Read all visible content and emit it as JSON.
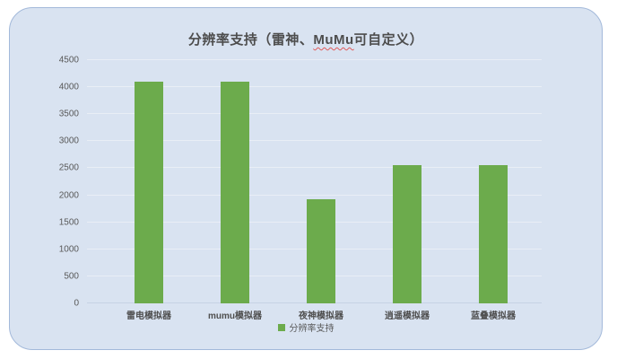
{
  "chart": {
    "title_prefix": "分辨率支持（雷神、",
    "title_highlight": "MuMu",
    "title_suffix": "可自定义）"
  },
  "chart_data": {
    "type": "bar",
    "title": "分辨率支持（雷神、MuMu可自定义）",
    "categories": [
      "雷电模拟器",
      "mumu模拟器",
      "夜神模拟器",
      "逍遥模拟器",
      "蓝叠模拟器"
    ],
    "series": [
      {
        "name": "分辨率支持",
        "values": [
          4096,
          4096,
          1920,
          2560,
          2560
        ]
      }
    ],
    "ylim": [
      0,
      4500
    ],
    "yticks": [
      0,
      500,
      1000,
      1500,
      2000,
      2500,
      3000,
      3500,
      4000,
      4500
    ],
    "grid": true,
    "legend": {
      "position": "bottom",
      "entries": [
        "分辨率支持"
      ]
    },
    "colors": {
      "bar": "#6cab4c",
      "card_background": "#d9e3f1",
      "card_border": "#a3b9da",
      "gridline": "#e9eef6",
      "title_text": "#4d4d4d",
      "axis_text": "#595959",
      "spellcheck_underline": "#e05a5a"
    }
  }
}
